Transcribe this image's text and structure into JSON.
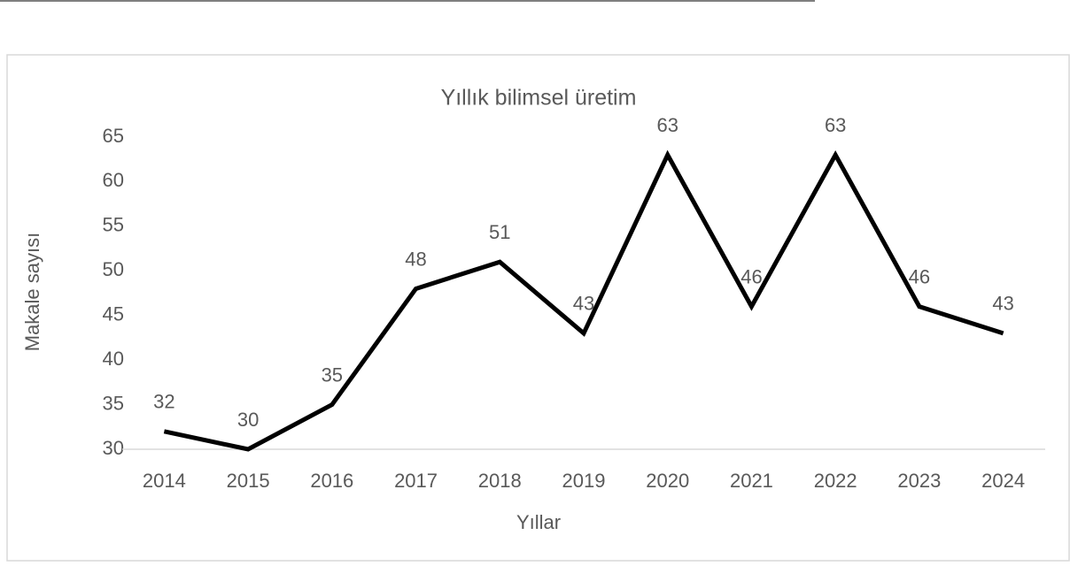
{
  "chart_data": {
    "type": "line",
    "title": "Yıllık bilimsel üretim",
    "x_label": "Yıllar",
    "y_label": "Makale sayısı",
    "categories": [
      "2014",
      "2015",
      "2016",
      "2017",
      "2018",
      "2019",
      "2020",
      "2021",
      "2022",
      "2023",
      "2024"
    ],
    "values": [
      32,
      30,
      35,
      48,
      51,
      43,
      63,
      46,
      63,
      46,
      43
    ],
    "color": "#000000",
    "ylim": [
      30,
      65
    ],
    "yticks": [
      30,
      35,
      40,
      45,
      50,
      55,
      60,
      65
    ],
    "grid": false,
    "data_labels": true
  }
}
